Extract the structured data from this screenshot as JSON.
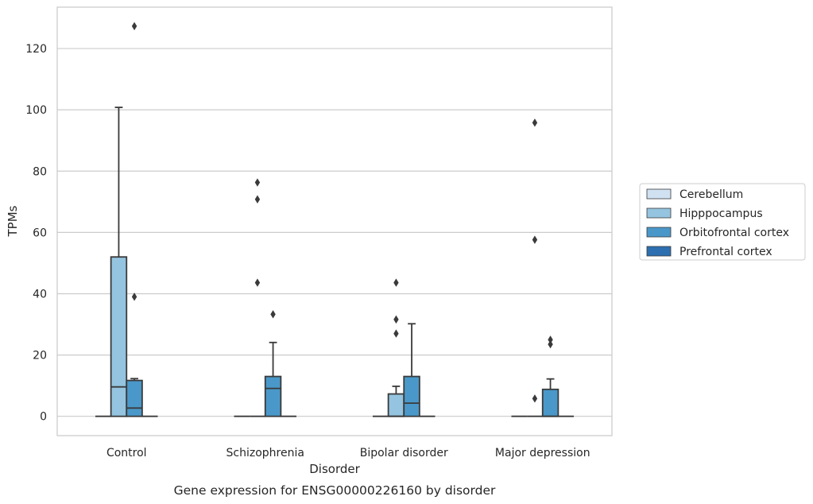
{
  "chart_data": {
    "type": "box",
    "caption": "Gene expression for ENSG00000226160 by disorder",
    "xlabel": "Disorder",
    "ylabel": "TPMs",
    "ylim": [
      -6.3,
      133.5
    ],
    "yticks": [
      0,
      20,
      40,
      60,
      80,
      100,
      120
    ],
    "grid": true,
    "legend_position": "right",
    "categories": [
      "Control",
      "Schizophrenia",
      "Bipolar disorder",
      "Major depression"
    ],
    "series": [
      {
        "name": "Cerebellum",
        "color": "#d0e1f2",
        "boxes": [
          {
            "q1": 0,
            "median": 0,
            "q3": 0,
            "whisker_low": 0,
            "whisker_high": 0,
            "outliers": []
          },
          {
            "q1": 0,
            "median": 0,
            "q3": 0,
            "whisker_low": 0,
            "whisker_high": 0,
            "outliers": []
          },
          {
            "q1": 0,
            "median": 0,
            "q3": 0,
            "whisker_low": 0,
            "whisker_high": 0,
            "outliers": []
          },
          {
            "q1": 0,
            "median": 0,
            "q3": 0,
            "whisker_low": 0,
            "whisker_high": 0,
            "outliers": []
          }
        ]
      },
      {
        "name": "Hipppocampus",
        "color": "#94c4df",
        "boxes": [
          {
            "q1": 0,
            "median": 9.6,
            "q3": 52,
            "whisker_low": 0,
            "whisker_high": 100.8,
            "outliers": []
          },
          {
            "q1": 0,
            "median": 0,
            "q3": 0,
            "whisker_low": 0,
            "whisker_high": 0,
            "outliers": [
              76.3,
              70.8,
              43.6
            ]
          },
          {
            "q1": 0,
            "median": 0,
            "q3": 7.3,
            "whisker_low": 0,
            "whisker_high": 9.8,
            "outliers": [
              43.6,
              31.6,
              27
            ]
          },
          {
            "q1": 0,
            "median": 0,
            "q3": 0,
            "whisker_low": 0,
            "whisker_high": 0,
            "outliers": [
              95.8,
              57.6,
              5.8
            ]
          }
        ]
      },
      {
        "name": "Orbitofrontal cortex",
        "color": "#4a98c9",
        "boxes": [
          {
            "q1": 0,
            "median": 2.7,
            "q3": 11.7,
            "whisker_low": 0,
            "whisker_high": 12.3,
            "outliers": [
              127.3,
              39
            ]
          },
          {
            "q1": 0,
            "median": 9.1,
            "q3": 13,
            "whisker_low": 0,
            "whisker_high": 24.1,
            "outliers": [
              33.3
            ]
          },
          {
            "q1": 0,
            "median": 4.3,
            "q3": 13,
            "whisker_low": 0,
            "whisker_high": 30.2,
            "outliers": []
          },
          {
            "q1": 0,
            "median": 0,
            "q3": 8.8,
            "whisker_low": 0,
            "whisker_high": 12.2,
            "outliers": [
              25,
              23.5
            ]
          }
        ]
      },
      {
        "name": "Prefrontal cortex",
        "color": "#2d6fb0",
        "boxes": [
          {
            "q1": 0,
            "median": 0,
            "q3": 0,
            "whisker_low": 0,
            "whisker_high": 0,
            "outliers": []
          },
          {
            "q1": 0,
            "median": 0,
            "q3": 0,
            "whisker_low": 0,
            "whisker_high": 0,
            "outliers": []
          },
          {
            "q1": 0,
            "median": 0,
            "q3": 0,
            "whisker_low": 0,
            "whisker_high": 0,
            "outliers": []
          },
          {
            "q1": 0,
            "median": 0,
            "q3": 0,
            "whisker_low": 0,
            "whisker_high": 0,
            "outliers": []
          }
        ]
      }
    ]
  }
}
